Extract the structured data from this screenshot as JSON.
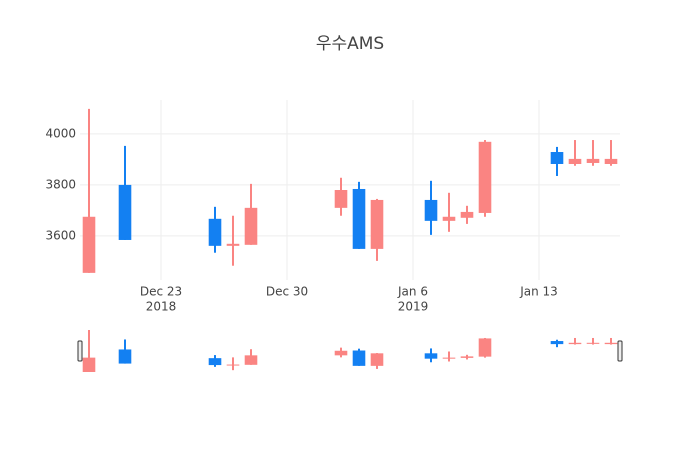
{
  "chart_data": {
    "type": "candlestick",
    "title": "우수AMS",
    "x": [
      "2018-12-19",
      "2018-12-21",
      "2018-12-26",
      "2018-12-27",
      "2018-12-28",
      "2019-01-02",
      "2019-01-03",
      "2019-01-04",
      "2019-01-07",
      "2019-01-08",
      "2019-01-09",
      "2019-01-10",
      "2019-01-14",
      "2019-01-15",
      "2019-01-16",
      "2019-01-17"
    ],
    "open": [
      3675,
      3584,
      3561,
      3569,
      3710,
      3780,
      3549,
      3741,
      3659,
      3675,
      3694,
      3969,
      3882,
      3902,
      3902,
      3902
    ],
    "high": [
      4098,
      3953,
      3714,
      3679,
      3804,
      3828,
      3812,
      3745,
      3816,
      3769,
      3718,
      3976,
      3949,
      3976,
      3976,
      3976
    ],
    "low": [
      3455,
      3584,
      3534,
      3483,
      3565,
      3679,
      3549,
      3502,
      3604,
      3616,
      3647,
      3675,
      3835,
      3875,
      3875,
      3875
    ],
    "close": [
      3455,
      3800,
      3667,
      3561,
      3565,
      3710,
      3784,
      3549,
      3741,
      3659,
      3671,
      3690,
      3929,
      3882,
      3886,
      3882
    ],
    "increasing_color": "#1380f2",
    "decreasing_color": "#fa8482",
    "xlim": [
      "2018-12-18 12:00",
      "2019-01-17 12:00"
    ],
    "xticks": [
      {
        "value": "2018-12-23",
        "label": "Dec 23",
        "sublabel": "2018"
      },
      {
        "value": "2018-12-30",
        "label": "Dec 30"
      },
      {
        "value": "2019-01-06",
        "label": "Jan 6",
        "sublabel": "2019"
      },
      {
        "value": "2019-01-13",
        "label": "Jan 13"
      }
    ],
    "ylim": [
      3427,
      4133
    ],
    "yticks": [
      3600,
      3800,
      4000
    ],
    "grid": true,
    "rangeslider": true
  }
}
